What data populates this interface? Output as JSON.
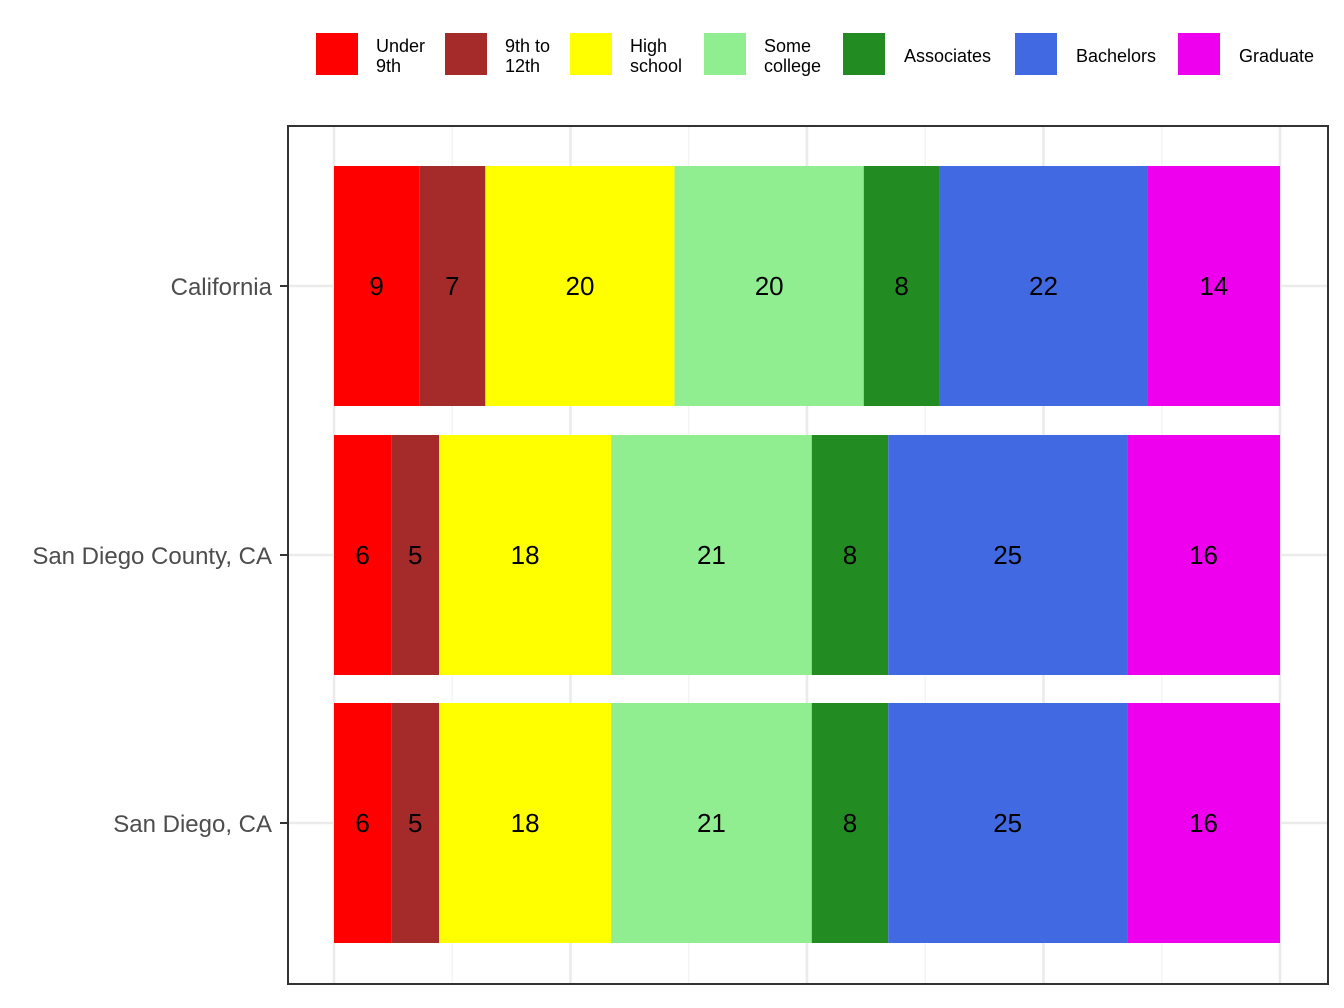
{
  "chart_data": {
    "type": "bar",
    "orientation": "horizontal",
    "stacked": true,
    "normalized": true,
    "categories": [
      "California",
      "San Diego County, CA",
      "San Diego, CA"
    ],
    "series": [
      {
        "name": "Under 9th",
        "color": "#ff0000",
        "values": [
          9,
          6,
          6
        ]
      },
      {
        "name": "9th to 12th",
        "color": "#a52a2a",
        "values": [
          7,
          5,
          5
        ]
      },
      {
        "name": "High school",
        "color": "#ffff00",
        "values": [
          20,
          18,
          18
        ]
      },
      {
        "name": "Some college",
        "color": "#90ee90",
        "values": [
          20,
          21,
          21
        ]
      },
      {
        "name": "Associates",
        "color": "#228b22",
        "values": [
          8,
          8,
          8
        ]
      },
      {
        "name": "Bachelors",
        "color": "#4169e1",
        "values": [
          22,
          25,
          25
        ]
      },
      {
        "name": "Graduate",
        "color": "#ee00ee",
        "values": [
          14,
          16,
          16
        ]
      }
    ],
    "legend_labels": [
      [
        "Under",
        "9th"
      ],
      [
        "9th to",
        "12th"
      ],
      [
        "High",
        "school"
      ],
      [
        "Some",
        "college"
      ],
      [
        "Associates"
      ],
      [
        "Bachelors"
      ],
      [
        "Graduate"
      ]
    ],
    "legend_position": "top",
    "x_tick_labels_shown": false,
    "grid": true,
    "title": "",
    "xlabel": "",
    "ylabel": ""
  }
}
